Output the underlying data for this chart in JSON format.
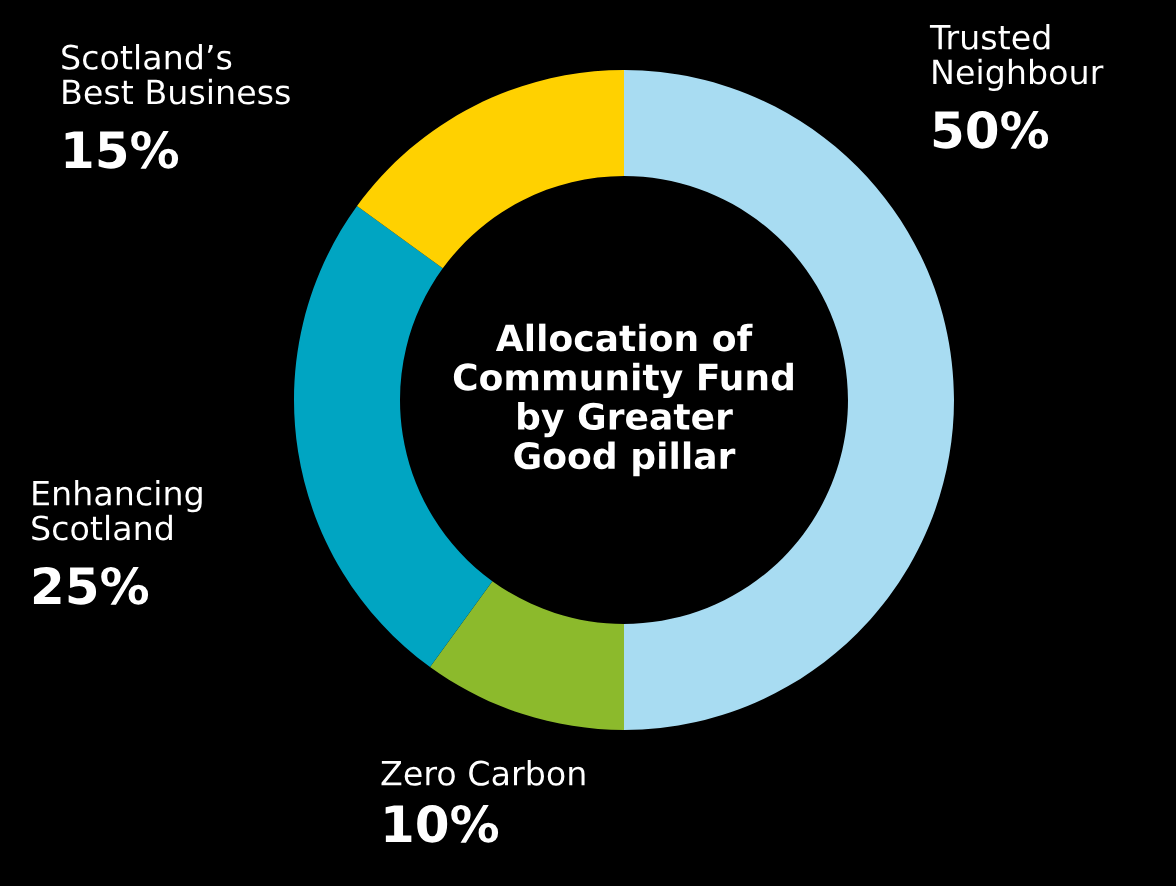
{
  "chart_data": {
    "type": "donut",
    "title": "Allocation of\nCommunity Fund\nby Greater\nGood pillar",
    "categories": [
      "Trusted\nNeighbour",
      "Zero Carbon",
      "Enhancing\nScotland",
      "Scotland’s\nBest Business"
    ],
    "values": [
      50,
      10,
      25,
      15
    ],
    "colors": [
      "#a8dcf2",
      "#8cba2c",
      "#00a5c2",
      "#ffd100"
    ],
    "value_labels": [
      "50%",
      "10%",
      "25%",
      "15%"
    ]
  }
}
